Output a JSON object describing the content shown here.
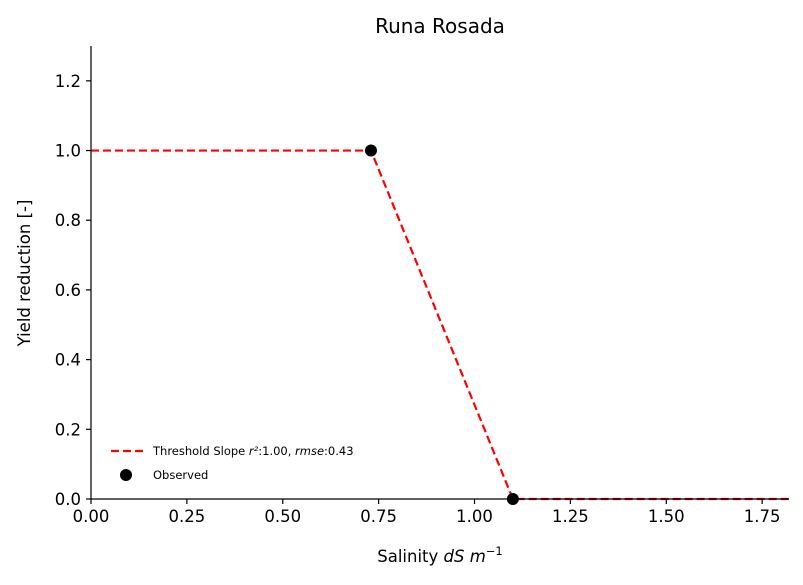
{
  "chart_data": {
    "type": "line",
    "title": "Runa Rosada",
    "xlabel": "Salinity",
    "xlabel_italic": "dS m",
    "xlabel_sup": "−1",
    "ylabel": "Yield reduction [-]",
    "xlim": [
      0,
      1.82
    ],
    "ylim": [
      0,
      1.3
    ],
    "xticks": [
      "0.00",
      "0.25",
      "0.50",
      "0.75",
      "1.00",
      "1.25",
      "1.50",
      "1.75"
    ],
    "yticks": [
      "0.0",
      "0.2",
      "0.4",
      "0.6",
      "0.8",
      "1.0",
      "1.2"
    ],
    "grid": false,
    "legend_position": "lower-left",
    "series": [
      {
        "name_parts": {
          "prefix": "Threshold Slope ",
          "r2_symbol": "r²",
          "r2_value": ":1.00, ",
          "rmse_symbol": "rmse",
          "rmse_value": ":0.43"
        },
        "kind": "line",
        "style": "dashed",
        "color": "#ff0000",
        "x": [
          0,
          0.73,
          1.1,
          1.82
        ],
        "y": [
          1.0,
          1.0,
          0.0,
          0.0
        ]
      },
      {
        "name": "Observed",
        "kind": "scatter",
        "color": "#000000",
        "x": [
          0.73,
          1.1
        ],
        "y": [
          1.0,
          0.0
        ]
      }
    ]
  }
}
